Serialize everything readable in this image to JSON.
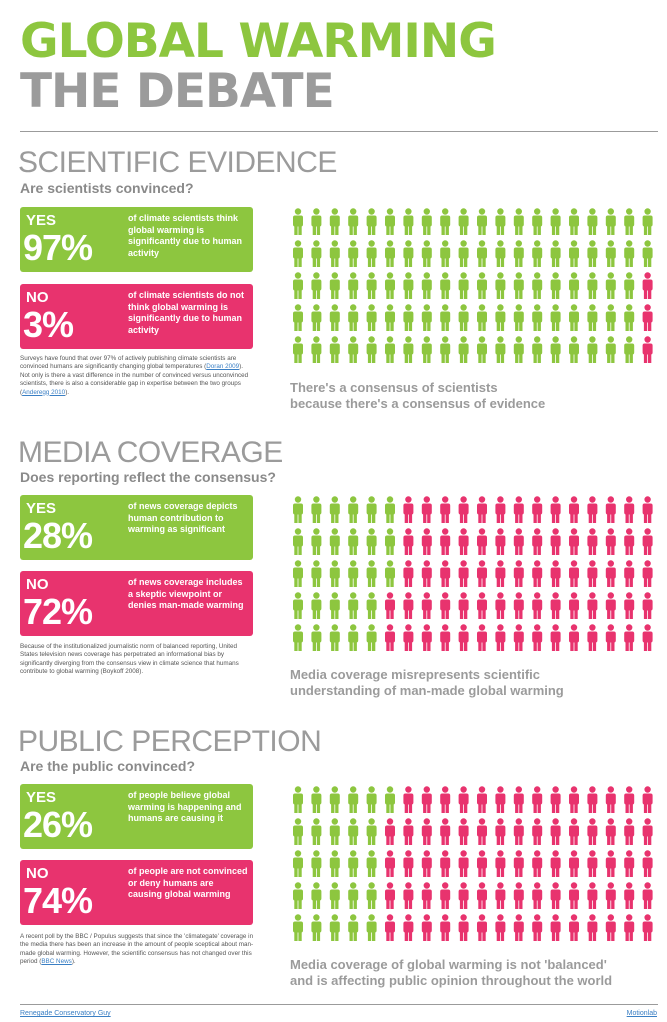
{
  "title": {
    "line1": "GLOBAL WARMING",
    "line2": "THE DEBATE"
  },
  "colors": {
    "green": "#8dc63f",
    "pink": "#e8336e",
    "grey": "#9b9b9b"
  },
  "sections": [
    {
      "heading": "SCIENTIFIC EVIDENCE",
      "question": "Are scientists convinced?",
      "yes": {
        "label": "YES",
        "percent": "97%",
        "value": 97,
        "text": "of climate scientists think global warming is significantly due to human activity"
      },
      "no": {
        "label": "NO",
        "percent": "3%",
        "value": 3,
        "text": "of climate scientists do not think global warming is significantly due to human activity"
      },
      "body": "Surveys have found that over 97% of actively publishing climate scientists are convinced humans are significantly changing global temperatures (",
      "ref1": "Doran 2009",
      "body2": "). Not only is there a vast difference in the number of convinced versus unconvinced scientists, there is also a considerable gap in expertise between the two groups (",
      "ref2": "Anderegg 2010",
      "body3": ").",
      "caption1": "There's a consensus of scientists",
      "caption2": "because there's a consensus of evidence"
    },
    {
      "heading": "MEDIA COVERAGE",
      "question": "Does reporting reflect the consensus?",
      "yes": {
        "label": "YES",
        "percent": "28%",
        "value": 28,
        "text": "of news coverage depicts human contribution to warming as significant"
      },
      "no": {
        "label": "NO",
        "percent": "72%",
        "value": 72,
        "text": "of news coverage includes a skeptic viewpoint or denies man-made warming"
      },
      "body": "Because of the institutionalized journalistic norm of balanced reporting, United States television news coverage has perpetrated an informational bias by significantly diverging from the consensus view in climate science that humans contribute to global warming (Boykoff 2008).",
      "caption1": "Media coverage misrepresents scientific",
      "caption2": "understanding of man-made global warming"
    },
    {
      "heading": "PUBLIC PERCEPTION",
      "question": "Are the public convinced?",
      "yes": {
        "label": "YES",
        "percent": "26%",
        "value": 26,
        "text": "of people believe global warming is happening and humans are causing it"
      },
      "no": {
        "label": "NO",
        "percent": "74%",
        "value": 74,
        "text": "of people are not convinced or deny humans are causing global warming"
      },
      "body": "A recent poll by the BBC / Populus suggests that since the 'climategate' coverage in the media there has been an increase in the amount of people sceptical about man-made global warming. However, the scientific consensus has not changed over this period (",
      "ref1": "BBC News",
      "body2": ").",
      "caption1": "Media coverage of global warming is not 'balanced'",
      "caption2": "and is affecting public opinion throughout the world"
    }
  ],
  "footer": {
    "left": "Renegade Conservatory Guy",
    "right": "Motionlab"
  }
}
